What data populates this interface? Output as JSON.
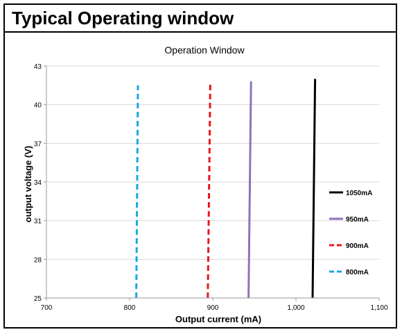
{
  "header": {
    "title": "Typical Operating window"
  },
  "chart_data": {
    "type": "line",
    "title": "Operation Window",
    "xlabel": "Output current (mA)",
    "ylabel": "output voltage (V)",
    "xlim": [
      700,
      1100
    ],
    "ylim": [
      25,
      43
    ],
    "xticks": [
      700,
      800,
      900,
      1000,
      1100
    ],
    "xtick_labels": [
      "700",
      "800",
      "900",
      "1,000",
      "1,100"
    ],
    "yticks": [
      25,
      28,
      31,
      34,
      37,
      40,
      43
    ],
    "ytick_labels": [
      "25",
      "28",
      "31",
      "34",
      "37",
      "40",
      "43"
    ],
    "grid": "horizontal",
    "legend_position": "right",
    "series": [
      {
        "name": "1050mA",
        "color": "#000000",
        "style": "solid",
        "points": [
          [
            1020,
            25
          ],
          [
            1023,
            42
          ]
        ]
      },
      {
        "name": "950mA",
        "color": "#8e72b8",
        "style": "solid",
        "points": [
          [
            943,
            25
          ],
          [
            946,
            41.8
          ]
        ]
      },
      {
        "name": "900mA",
        "color": "#e8161b",
        "style": "dashed",
        "points": [
          [
            894,
            25
          ],
          [
            897,
            41.6
          ]
        ]
      },
      {
        "name": "800mA",
        "color": "#17a8e3",
        "style": "dashed",
        "points": [
          [
            808,
            25
          ],
          [
            810,
            41.5
          ]
        ]
      }
    ]
  }
}
